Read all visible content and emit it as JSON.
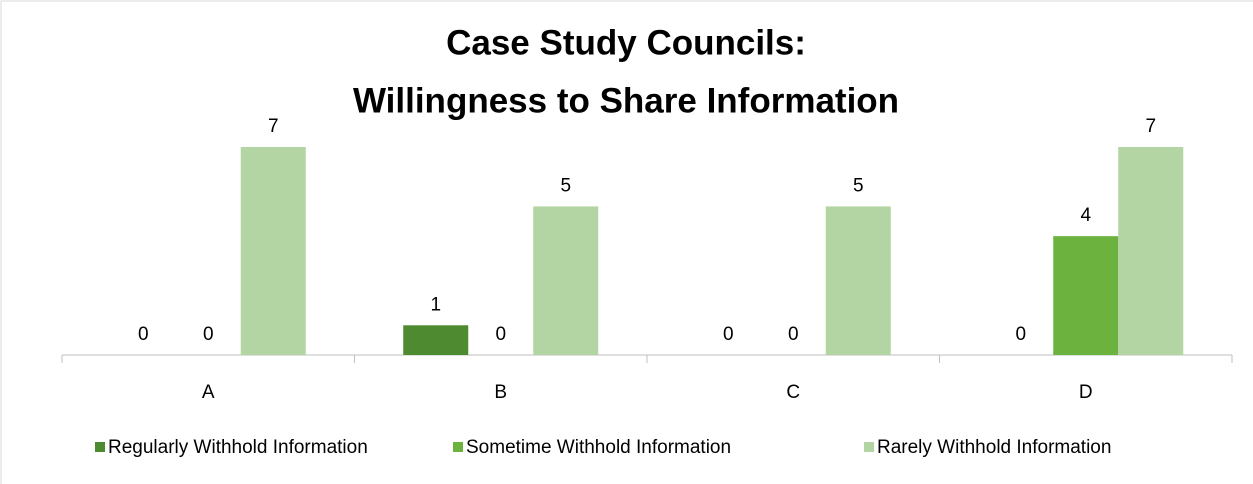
{
  "chart_data": {
    "type": "bar",
    "title": [
      "Case Study Councils:",
      "Willingness to Share Information"
    ],
    "categories": [
      "A",
      "B",
      "C",
      "D"
    ],
    "series": [
      {
        "name": "Regularly Withhold Information",
        "color": "#4e8a2f",
        "values": [
          0,
          1,
          0,
          0
        ]
      },
      {
        "name": "Sometime Withhold Information",
        "color": "#6bb33e",
        "values": [
          0,
          0,
          0,
          4
        ]
      },
      {
        "name": "Rarely Withhold Information",
        "color": "#b3d4a3",
        "values": [
          7,
          5,
          5,
          7
        ]
      }
    ],
    "legend": "bottom"
  }
}
